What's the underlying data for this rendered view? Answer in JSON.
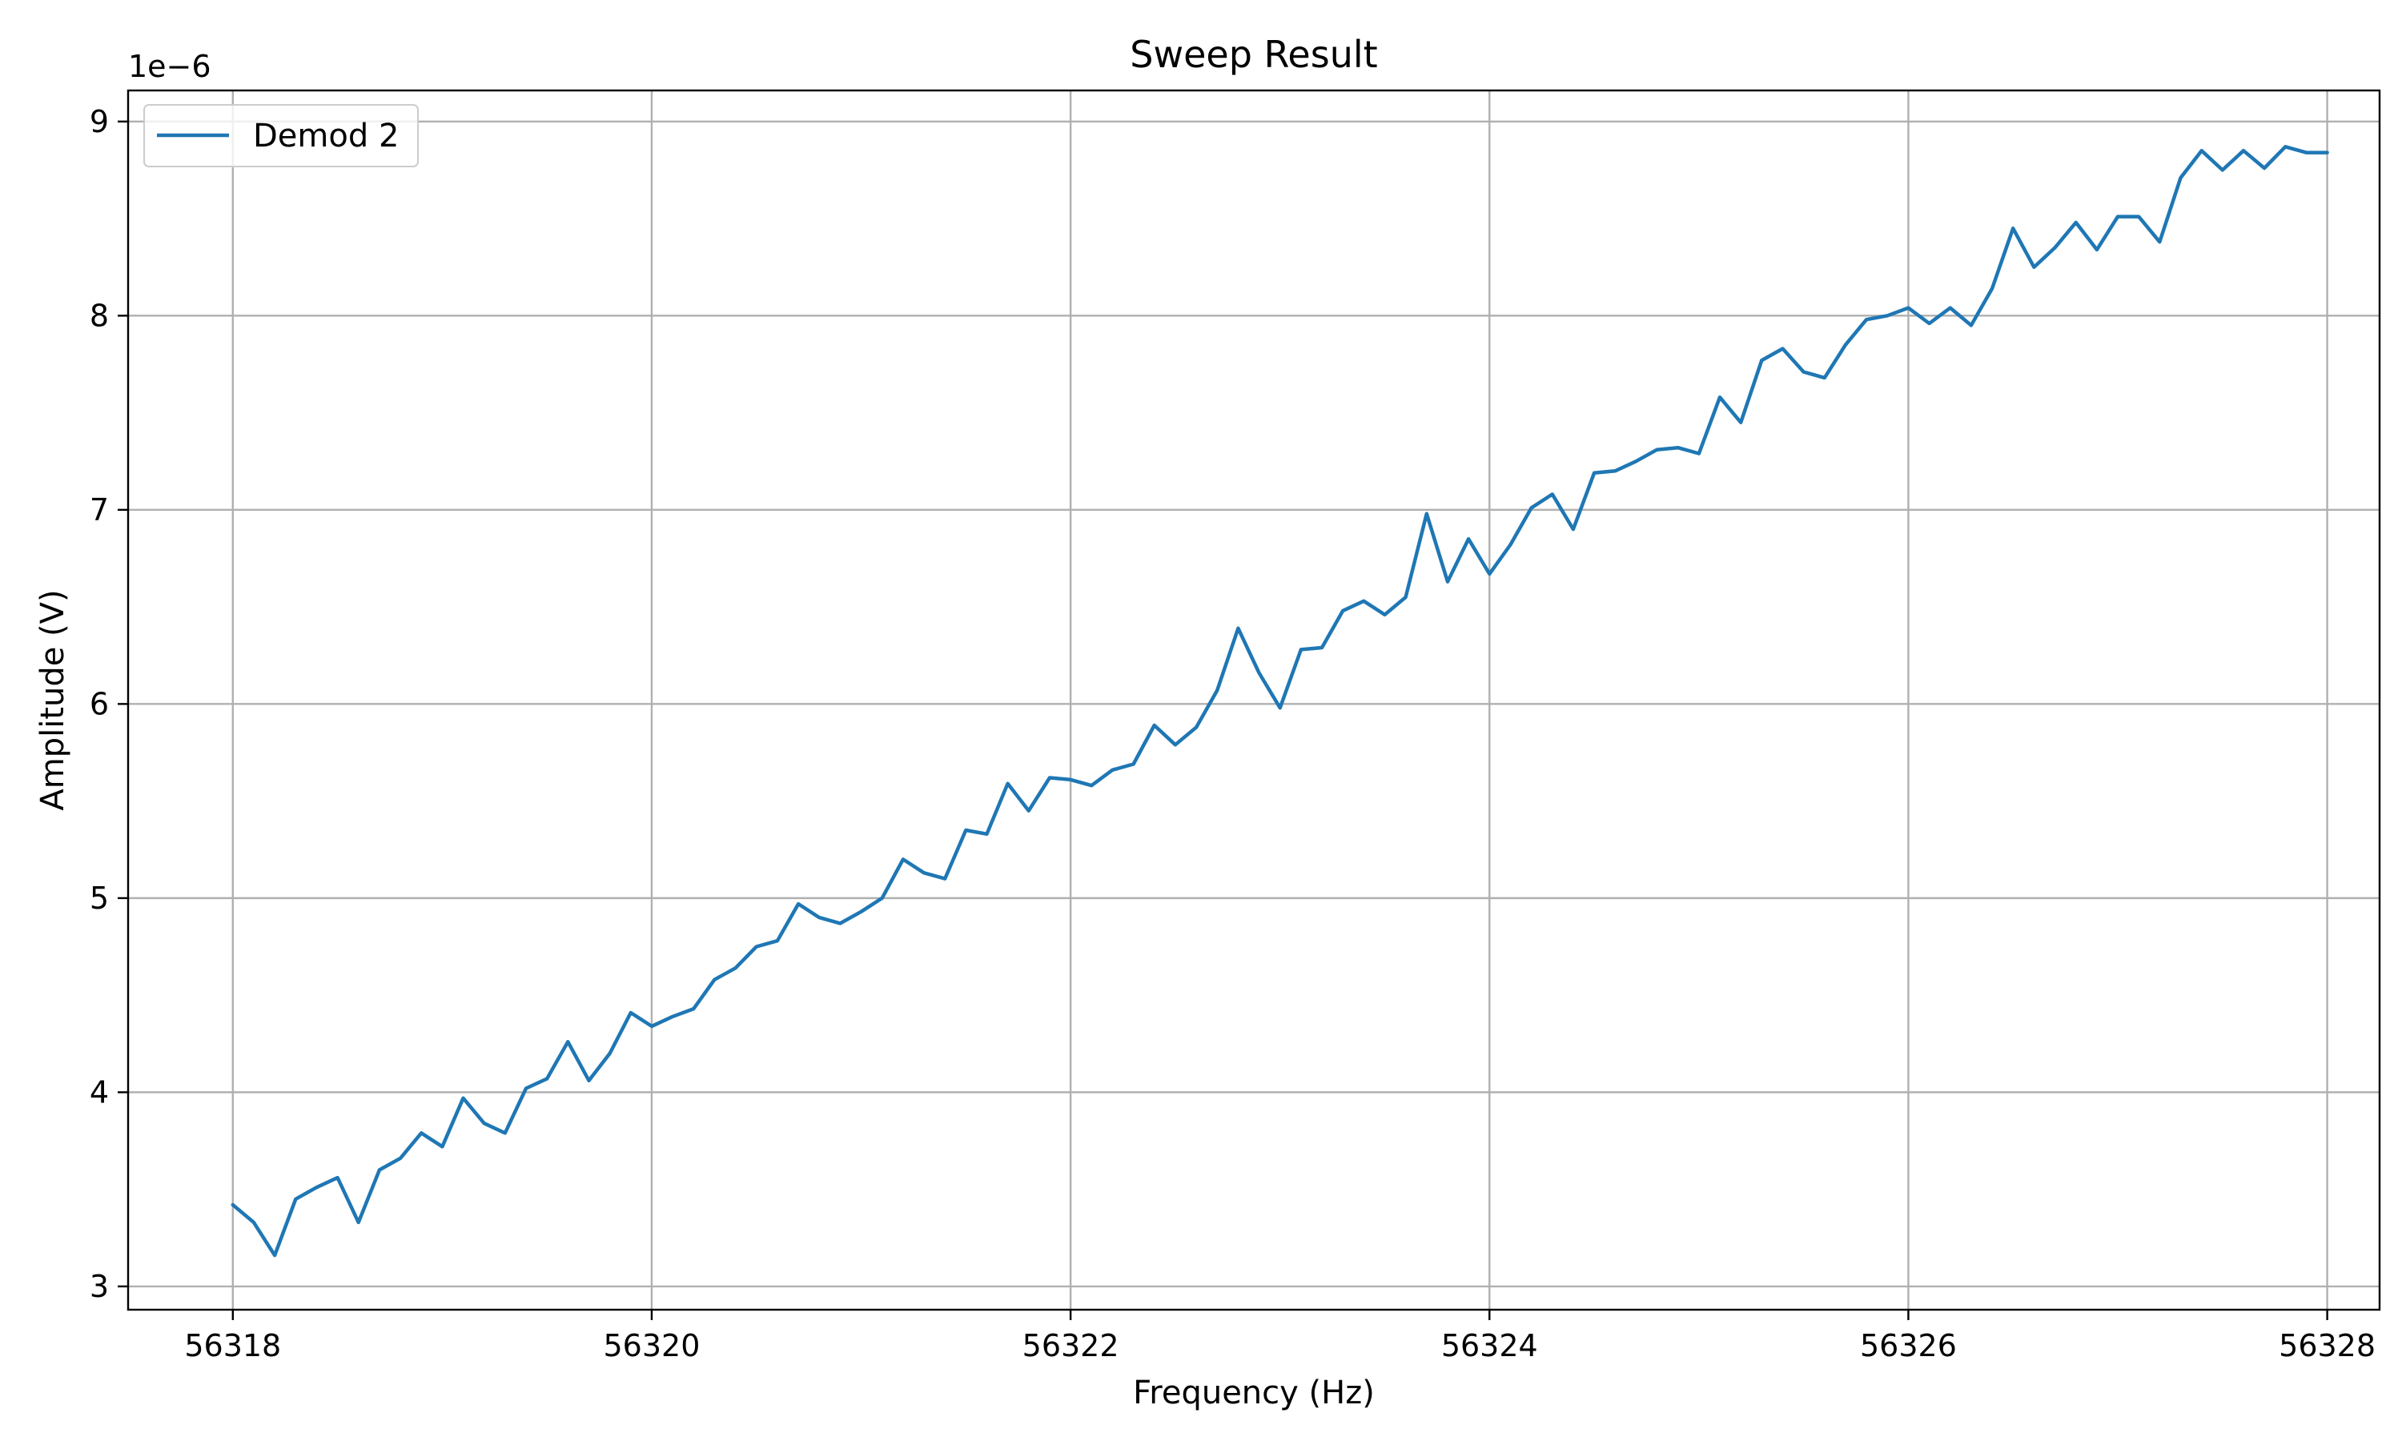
{
  "chart_data": {
    "type": "line",
    "title": "Sweep Result",
    "xlabel": "Frequency (Hz)",
    "ylabel": "Amplitude (V)",
    "y_offset_text": "1e−6",
    "xlim": [
      56317.5,
      56328.25
    ],
    "ylim": [
      2.88,
      9.16
    ],
    "xticks": [
      56318,
      56320,
      56322,
      56324,
      56326,
      56328
    ],
    "xtick_labels": [
      "56318",
      "56320",
      "56322",
      "56324",
      "56326",
      "56328"
    ],
    "yticks": [
      3,
      4,
      5,
      6,
      7,
      8,
      9
    ],
    "ytick_labels": [
      "3",
      "4",
      "5",
      "6",
      "7",
      "8",
      "9"
    ],
    "grid": true,
    "legend_position": "upper-left",
    "series_color": "#1f77b4",
    "series": [
      {
        "name": "Demod 2",
        "x": [
          56318.0,
          56318.1,
          56318.2,
          56318.3,
          56318.4,
          56318.5,
          56318.6,
          56318.7,
          56318.8,
          56318.9,
          56319.0,
          56319.1,
          56319.2,
          56319.3,
          56319.4,
          56319.5,
          56319.6,
          56319.7,
          56319.8,
          56319.9,
          56320.0,
          56320.1,
          56320.2,
          56320.3,
          56320.4,
          56320.5,
          56320.6,
          56320.7,
          56320.8,
          56320.9,
          56321.0,
          56321.1,
          56321.2,
          56321.3,
          56321.4,
          56321.5,
          56321.6,
          56321.7,
          56321.8,
          56321.9,
          56322.0,
          56322.1,
          56322.2,
          56322.3,
          56322.4,
          56322.5,
          56322.6,
          56322.7,
          56322.8,
          56322.9,
          56323.0,
          56323.1,
          56323.2,
          56323.3,
          56323.4,
          56323.5,
          56323.6,
          56323.7,
          56323.8,
          56323.9,
          56324.0,
          56324.1,
          56324.2,
          56324.3,
          56324.4,
          56324.5,
          56324.6,
          56324.7,
          56324.8,
          56324.9,
          56325.0,
          56325.1,
          56325.2,
          56325.3,
          56325.4,
          56325.5,
          56325.6,
          56325.7,
          56325.8,
          56325.9,
          56326.0,
          56326.1,
          56326.2,
          56326.3,
          56326.4,
          56326.5,
          56326.6,
          56326.7,
          56326.8,
          56326.9,
          56327.0,
          56327.1,
          56327.2,
          56327.3,
          56327.4,
          56327.5,
          56327.6,
          56327.7,
          56327.8,
          56327.9,
          56328.0
        ],
        "y": [
          3.42,
          3.33,
          3.16,
          3.45,
          3.51,
          3.56,
          3.33,
          3.6,
          3.66,
          3.79,
          3.72,
          3.97,
          3.84,
          3.79,
          4.02,
          4.07,
          4.26,
          4.06,
          4.2,
          4.41,
          4.34,
          4.39,
          4.43,
          4.58,
          4.64,
          4.75,
          4.78,
          4.97,
          4.9,
          4.87,
          4.93,
          5.0,
          5.2,
          5.13,
          5.1,
          5.35,
          5.33,
          5.59,
          5.45,
          5.62,
          5.61,
          5.58,
          5.66,
          5.69,
          5.89,
          5.79,
          5.88,
          6.07,
          6.39,
          6.16,
          5.98,
          6.28,
          6.29,
          6.48,
          6.53,
          6.46,
          6.55,
          6.98,
          6.63,
          6.85,
          6.67,
          6.82,
          7.01,
          7.08,
          6.9,
          7.19,
          7.2,
          7.25,
          7.31,
          7.32,
          7.29,
          7.58,
          7.45,
          7.77,
          7.83,
          7.71,
          7.68,
          7.85,
          7.98,
          8.0,
          8.04,
          7.96,
          8.04,
          7.95,
          8.14,
          8.45,
          8.25,
          8.35,
          8.48,
          8.34,
          8.51,
          8.51,
          8.38,
          8.71,
          8.85,
          8.75,
          8.85,
          8.76,
          8.87,
          8.84,
          8.84
        ]
      }
    ]
  }
}
